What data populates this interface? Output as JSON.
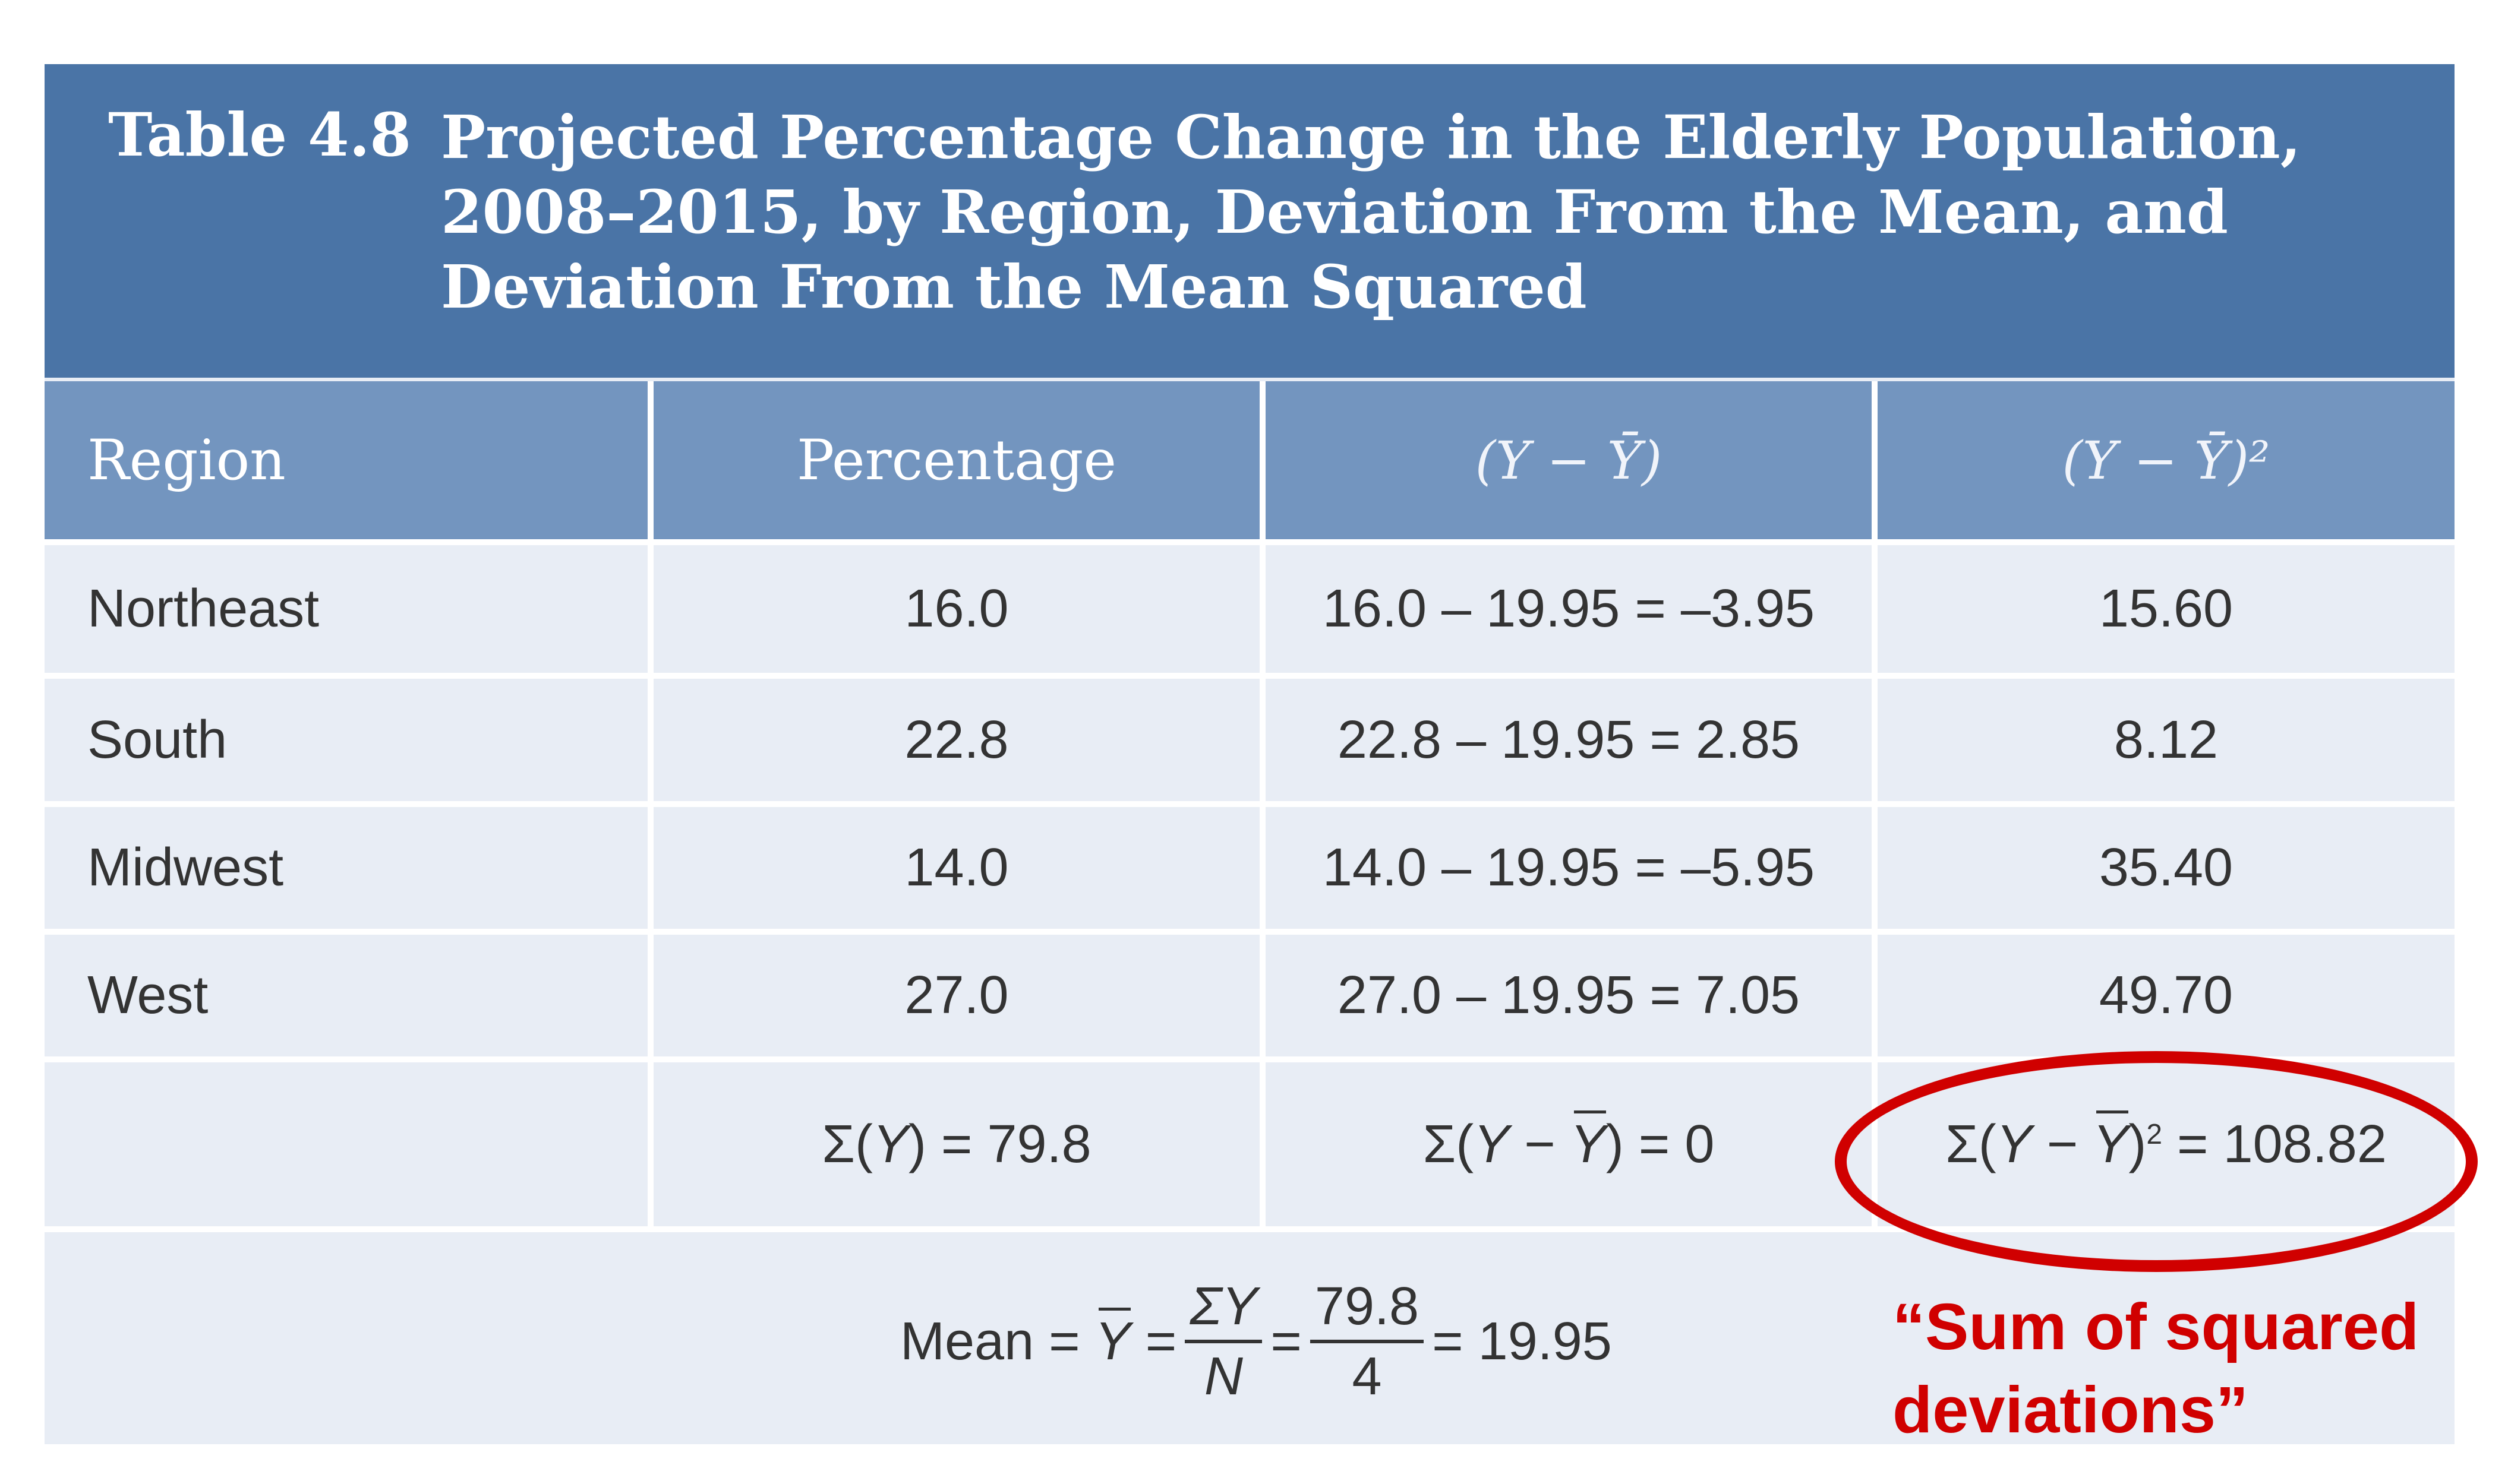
{
  "table": {
    "number": "Table 4.8",
    "title": "Projected Percentage Change in the Elderly Population, 2008–2015, by Region, Deviation From the Mean, and Deviation From the Mean Squared",
    "header_bg": "#4a74a6",
    "column_header_bg": "#7395bf",
    "body_bg": "#e8edf5",
    "columns": {
      "region": "Region",
      "percentage": "Percentage",
      "deviation": "(Y − Ȳ)",
      "deviation_squared": "(Y − Ȳ)²"
    },
    "rows": [
      {
        "region": "Northeast",
        "percentage": "16.0",
        "deviation": "16.0 – 19.95 = –3.95",
        "deviation_squared": "15.60"
      },
      {
        "region": "South",
        "percentage": "22.8",
        "deviation": "22.8 – 19.95 = 2.85",
        "deviation_squared": "8.12"
      },
      {
        "region": "Midwest",
        "percentage": "14.0",
        "deviation": "14.0 – 19.95 = –5.95",
        "deviation_squared": "35.40"
      },
      {
        "region": "West",
        "percentage": "27.0",
        "deviation": "27.0 – 19.95 = 7.05",
        "deviation_squared": "49.70"
      }
    ],
    "sums": {
      "percentage_sum": "79.8",
      "deviation_sum": "0",
      "deviation_squared_sum": "108.82"
    },
    "mean": {
      "label": "Mean",
      "numerator_sum": "ΣY",
      "denominator": "N",
      "numerator_value": "79.8",
      "denominator_value": "4",
      "result": "19.95"
    }
  },
  "annotation": {
    "text": "“Sum of squared deviations”",
    "color": "#d00000"
  }
}
